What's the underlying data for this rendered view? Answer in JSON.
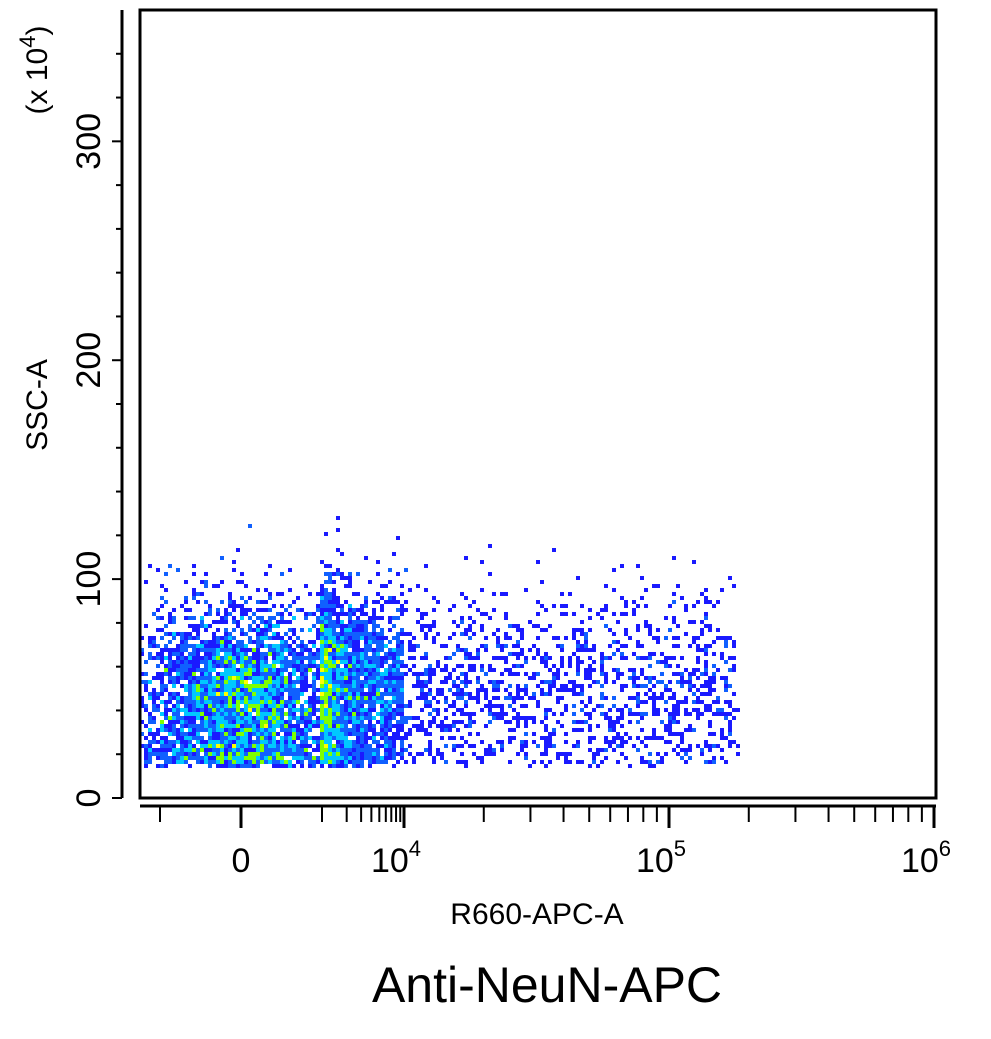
{
  "chart_data": {
    "type": "scatter",
    "subtype": "density scatter (flow cytometry dot plot)",
    "caption": "Anti-NeuN-APC",
    "xlabel": "R660-APC-A",
    "ylabel": "SSC-A",
    "y_multiplier": "(x 10",
    "y_multiplier_exp": "4",
    "y_multiplier_close": ")",
    "x_scale": "biexponential (linear near 0, logarithmic above 10^4)",
    "xlim": [
      -2500,
      1000000
    ],
    "ylim": [
      0,
      360
    ],
    "x_ticks": [
      {
        "value": 0,
        "label": "0",
        "exp": ""
      },
      {
        "value": 10000,
        "label": "10",
        "exp": "4"
      },
      {
        "value": 100000,
        "label": "10",
        "exp": "5"
      },
      {
        "value": 1000000,
        "label": "10",
        "exp": "6"
      }
    ],
    "y_ticks": [
      {
        "value": 0,
        "label": "0"
      },
      {
        "value": 100,
        "label": "100"
      },
      {
        "value": 200,
        "label": "200"
      },
      {
        "value": 300,
        "label": "300"
      }
    ],
    "grid": false,
    "legend": "none",
    "colors": {
      "low_density": "#1a1aff",
      "mid_density": "#00c8ff",
      "high_density": "#7fff00",
      "peak_density": "#ff8000",
      "axis": "#000000"
    },
    "populations": [
      {
        "name": "main",
        "color_range": [
          "blue",
          "cyan",
          "green",
          "yellow",
          "orange"
        ],
        "x_center": 0,
        "x_spread": 600,
        "y_center": 45,
        "y_spread": 22,
        "y_range": [
          15,
          130
        ],
        "weight": 0.58
      },
      {
        "name": "tail",
        "color_range": [
          "blue"
        ],
        "x_range": [
          1000,
          180000
        ],
        "y_center": 50,
        "y_spread": 22,
        "y_range": [
          15,
          128
        ],
        "weight": 0.42
      }
    ]
  }
}
